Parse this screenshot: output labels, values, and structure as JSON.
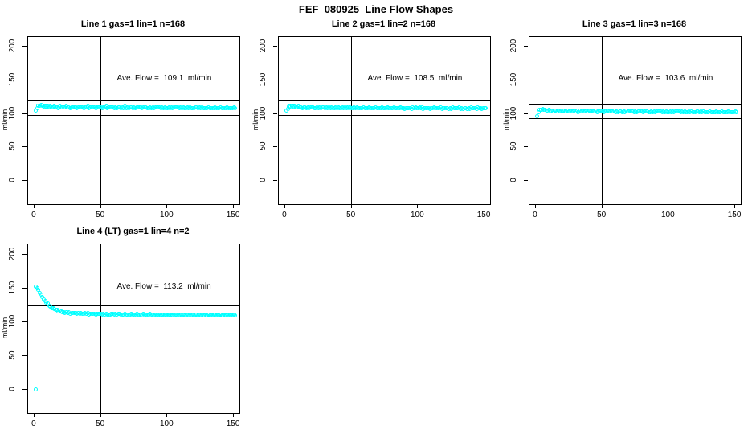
{
  "figure": {
    "title": "FEF_080925  Line Flow Shapes",
    "background": "#FFFFFF",
    "point_color": "#00FFFF",
    "line_color": "#000000",
    "text_color": "#000000"
  },
  "chart_data": [
    {
      "type": "scatter",
      "title": "Line 1 gas=1 lin=1 n=168",
      "annotation": "Ave. Flow =  109.1  ml/min",
      "ave_flow_ml_min": 109.1,
      "ylabel": "ml/min",
      "xlim": [
        -4.8,
        154.2
      ],
      "ylim": [
        -35,
        215
      ],
      "x_ticks": [
        0,
        50,
        100,
        150
      ],
      "y_ticks": [
        0,
        50,
        100,
        150,
        200
      ],
      "vline_x": 50,
      "hlines": [
        120.0,
        98.2
      ],
      "marker": "open-circle",
      "series": {
        "name": "flow",
        "x_start": 1,
        "x_end": 151,
        "x_step": 1,
        "control_points": [
          [
            1,
            104.5
          ],
          [
            2,
            109
          ],
          [
            3,
            111.5
          ],
          [
            4,
            112.5
          ],
          [
            6,
            112.3
          ],
          [
            8,
            111.2
          ],
          [
            10,
            110.6
          ],
          [
            14,
            110.2
          ],
          [
            20,
            110.0
          ],
          [
            30,
            109.9
          ],
          [
            50,
            109.7
          ],
          [
            70,
            109.5
          ],
          [
            90,
            109.4
          ],
          [
            110,
            109.2
          ],
          [
            130,
            109.0
          ],
          [
            151,
            108.8
          ]
        ]
      },
      "outlier_points": []
    },
    {
      "type": "scatter",
      "title": "Line 2 gas=1 lin=2 n=168",
      "annotation": "Ave. Flow =  108.5  ml/min",
      "ave_flow_ml_min": 108.5,
      "ylabel": "ml/min",
      "xlim": [
        -4.8,
        154.2
      ],
      "ylim": [
        -35,
        215
      ],
      "x_ticks": [
        0,
        50,
        100,
        150
      ],
      "y_ticks": [
        0,
        50,
        100,
        150,
        200
      ],
      "vline_x": 50,
      "hlines": [
        119.4,
        97.7
      ],
      "marker": "open-circle",
      "series": {
        "name": "flow",
        "x_start": 1,
        "x_end": 151,
        "x_step": 1,
        "control_points": [
          [
            1,
            104.5
          ],
          [
            2,
            108
          ],
          [
            3,
            110.8
          ],
          [
            4,
            111.6
          ],
          [
            6,
            111.4
          ],
          [
            8,
            110.4
          ],
          [
            10,
            109.9
          ],
          [
            14,
            109.6
          ],
          [
            20,
            109.4
          ],
          [
            30,
            109.2
          ],
          [
            50,
            109.1
          ],
          [
            70,
            108.9
          ],
          [
            90,
            108.8
          ],
          [
            110,
            108.7
          ],
          [
            130,
            108.5
          ],
          [
            151,
            108.4
          ]
        ]
      },
      "outlier_points": []
    },
    {
      "type": "scatter",
      "title": "Line 3 gas=1 lin=3 n=168",
      "annotation": "Ave. Flow =  103.6  ml/min",
      "ave_flow_ml_min": 103.6,
      "ylabel": "ml/min",
      "xlim": [
        -4.8,
        154.2
      ],
      "ylim": [
        -35,
        215
      ],
      "x_ticks": [
        0,
        50,
        100,
        150
      ],
      "y_ticks": [
        0,
        50,
        100,
        150,
        200
      ],
      "vline_x": 50,
      "hlines": [
        114.0,
        93.2
      ],
      "marker": "open-circle",
      "series": {
        "name": "flow",
        "x_start": 1,
        "x_end": 151,
        "x_step": 1,
        "control_points": [
          [
            1,
            96.5
          ],
          [
            2,
            102.5
          ],
          [
            3,
            105.8
          ],
          [
            4,
            106.6
          ],
          [
            6,
            106.4
          ],
          [
            8,
            105.4
          ],
          [
            10,
            104.9
          ],
          [
            14,
            104.6
          ],
          [
            20,
            104.4
          ],
          [
            30,
            104.2
          ],
          [
            50,
            103.9
          ],
          [
            70,
            103.6
          ],
          [
            90,
            103.4
          ],
          [
            110,
            103.2
          ],
          [
            130,
            103.0
          ],
          [
            151,
            102.8
          ]
        ]
      },
      "outlier_points": []
    },
    {
      "type": "scatter",
      "title": "Line 4 (LT) gas=1 lin=4 n=2",
      "annotation": "Ave. Flow =  113.2  ml/min",
      "ave_flow_ml_min": 113.2,
      "ylabel": "ml/min",
      "xlim": [
        -4.8,
        154.2
      ],
      "ylim": [
        -35,
        215
      ],
      "x_ticks": [
        0,
        50,
        100,
        150
      ],
      "y_ticks": [
        0,
        50,
        100,
        150,
        200
      ],
      "vline_x": 50,
      "hlines": [
        124.5,
        101.9
      ],
      "marker": "open-circle",
      "series": {
        "name": "flow",
        "x_start": 1,
        "x_end": 151,
        "x_step": 1,
        "control_points": [
          [
            1,
            152
          ],
          [
            2,
            150
          ],
          [
            3,
            147
          ],
          [
            4,
            143.5
          ],
          [
            5,
            140
          ],
          [
            6,
            136.8
          ],
          [
            7,
            133.8
          ],
          [
            8,
            131
          ],
          [
            9,
            128.5
          ],
          [
            10,
            126.3
          ],
          [
            12,
            122.8
          ],
          [
            14,
            120
          ],
          [
            16,
            118
          ],
          [
            18,
            116.4
          ],
          [
            20,
            115.2
          ],
          [
            24,
            113.8
          ],
          [
            28,
            113
          ],
          [
            35,
            112.3
          ],
          [
            45,
            111.8
          ],
          [
            60,
            111.4
          ],
          [
            80,
            111.0
          ],
          [
            100,
            110.7
          ],
          [
            120,
            110.3
          ],
          [
            140,
            110.0
          ],
          [
            151,
            109.8
          ]
        ]
      },
      "outlier_points": [
        [
          1,
          0
        ]
      ]
    }
  ]
}
